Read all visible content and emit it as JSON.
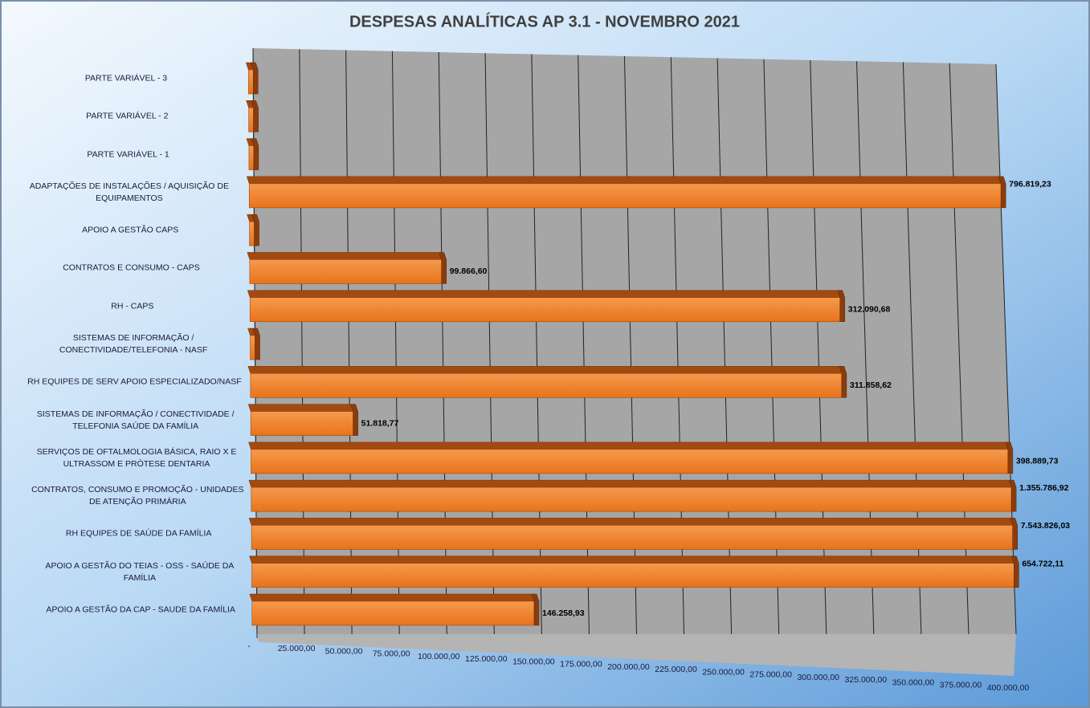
{
  "chart_data": {
    "type": "bar3d-horizontal",
    "title": "DESPESAS ANALÍTICAS AP 3.1 - NOVEMBRO 2021",
    "categories": [
      "PARTE VARIÁVEL - 3",
      "PARTE VARIÁVEL - 2",
      "PARTE VARIÁVEL - 1",
      "ADAPTAÇÕES DE INSTALAÇÕES / AQUISIÇÃO DE\nEQUIPAMENTOS",
      "APOIO A GESTÃO CAPS",
      "CONTRATOS E CONSUMO - CAPS",
      "RH - CAPS",
      "SISTEMAS DE INFORMAÇÃO /\nCONECTIVIDADE/TELEFONIA - NASF",
      "RH EQUIPES DE SERV APOIO ESPECIALIZADO/NASF",
      "SISTEMAS DE INFORMAÇÃO / CONECTIVIDADE /\nTELEFONIA SAÚDE DA FAMÍLIA",
      "SERVIÇOS DE OFTALMOLOGIA BÁSICA, RAIO X E\nULTRASSOM E PRÓTESE DENTARIA",
      "CONTRATOS, CONSUMO E PROMOÇÃO - UNIDADES\nDE ATENÇÃO PRIMÁRIA",
      "RH EQUIPES DE SAÚDE DA FAMÍLIA",
      "APOIO A GESTÃO DO TEIAS - OSS - SAÚDE DA\nFAMÍLIA",
      "APOIO A GESTÃO DA CAP - SAUDE DA FAMÍLIA"
    ],
    "values": [
      0,
      0,
      0,
      796819.23,
      0,
      99866.6,
      312090.68,
      0,
      311858.62,
      51818.77,
      398889.73,
      1355786.92,
      7543826.03,
      654722.11,
      146258.93
    ],
    "value_labels": [
      null,
      null,
      null,
      "796.819,23",
      null,
      "99.866,60",
      "312.090,68",
      null,
      "311.858,62",
      "51.818,77",
      "398.889,73",
      "1.355.786,92",
      "7.543.826,03",
      "654.722,11",
      "146.258,93"
    ],
    "color": "#f07b22",
    "xlim": [
      0,
      400000
    ],
    "xticks": [
      {
        "value": 0,
        "label": "-"
      },
      {
        "value": 25000,
        "label": "25.000,00"
      },
      {
        "value": 50000,
        "label": "50.000,00"
      },
      {
        "value": 75000,
        "label": "75.000,00"
      },
      {
        "value": 100000,
        "label": "100.000,00"
      },
      {
        "value": 125000,
        "label": "125.000,00"
      },
      {
        "value": 150000,
        "label": "150.000,00"
      },
      {
        "value": 175000,
        "label": "175.000,00"
      },
      {
        "value": 200000,
        "label": "200.000,00"
      },
      {
        "value": 225000,
        "label": "225.000,00"
      },
      {
        "value": 250000,
        "label": "250.000,00"
      },
      {
        "value": 275000,
        "label": "275.000,00"
      },
      {
        "value": 300000,
        "label": "300.000,00"
      },
      {
        "value": 325000,
        "label": "325.000,00"
      },
      {
        "value": 350000,
        "label": "350.000,00"
      },
      {
        "value": 375000,
        "label": "375.000,00"
      },
      {
        "value": 400000,
        "label": "400.000,00"
      }
    ],
    "grid": true
  }
}
